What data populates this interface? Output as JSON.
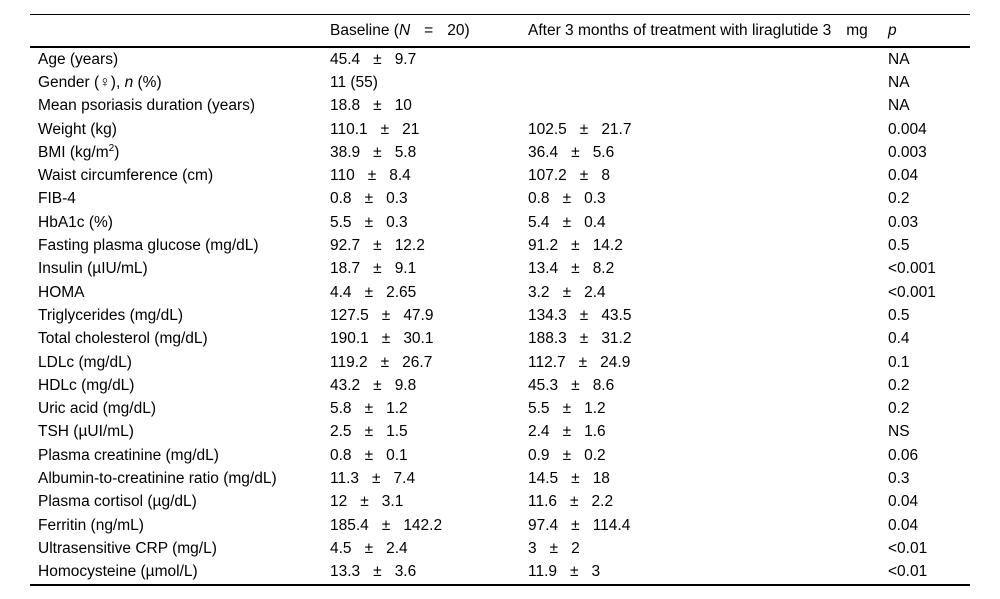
{
  "header": {
    "parameter": "",
    "baseline": {
      "pre": "Baseline (",
      "n": "N",
      "eq": "=",
      "post": "20)"
    },
    "after": {
      "main": "After 3 months of treatment with liraglutide 3",
      "unit": "mg"
    },
    "p": "p"
  },
  "rows": [
    {
      "label_pre": "Age (years)",
      "b_mean": "45.4",
      "b_pm": "±",
      "b_sd": "9.7",
      "p": "NA"
    },
    {
      "label_pre": "Gender (♀), ",
      "label_it": "n",
      "label_post": " (%)",
      "b_mean": "11 (55)",
      "p": "NA"
    },
    {
      "label_pre": "Mean psoriasis duration (years)",
      "b_mean": "18.8",
      "b_pm": "±",
      "b_sd": "10",
      "p": "NA"
    },
    {
      "label_pre": "Weight (kg)",
      "b_mean": "110.1",
      "b_pm": "±",
      "b_sd": "21",
      "a_mean": "102.5",
      "a_pm": "±",
      "a_sd": "21.7",
      "p": "0.004"
    },
    {
      "label_pre": "BMI (kg/m",
      "label_sup": "2",
      "label_post": ")",
      "b_mean": "38.9",
      "b_pm": "±",
      "b_sd": "5.8",
      "a_mean": "36.4",
      "a_pm": "±",
      "a_sd": "5.6",
      "p": "0.003"
    },
    {
      "label_pre": "Waist circumference (cm)",
      "b_mean": "110",
      "b_pm": "±",
      "b_sd": "8.4",
      "a_mean": "107.2",
      "a_pm": "±",
      "a_sd": "8",
      "p": "0.04"
    },
    {
      "label_pre": "FIB-4",
      "b_mean": "0.8",
      "b_pm": "±",
      "b_sd": "0.3",
      "a_mean": "0.8",
      "a_pm": "±",
      "a_sd": "0.3",
      "p": "0.2"
    },
    {
      "label_pre": "HbA1c (%)",
      "b_mean": "5.5",
      "b_pm": "±",
      "b_sd": "0.3",
      "a_mean": "5.4",
      "a_pm": "±",
      "a_sd": "0.4",
      "p": "0.03"
    },
    {
      "label_pre": "Fasting plasma glucose (mg/dL)",
      "b_mean": "92.7",
      "b_pm": "±",
      "b_sd": "12.2",
      "a_mean": "91.2",
      "a_pm": "±",
      "a_sd": "14.2",
      "p": "0.5"
    },
    {
      "label_pre": "Insulin (µIU/mL)",
      "b_mean": "18.7",
      "b_pm": "±",
      "b_sd": "9.1",
      "a_mean": "13.4",
      "a_pm": "±",
      "a_sd": "8.2",
      "p": "<0.001"
    },
    {
      "label_pre": "HOMA",
      "b_mean": "4.4",
      "b_pm": "±",
      "b_sd": "2.65",
      "a_mean": "3.2",
      "a_pm": "±",
      "a_sd": "2.4",
      "p": "<0.001"
    },
    {
      "label_pre": "Triglycerides (mg/dL)",
      "b_mean": "127.5",
      "b_pm": "±",
      "b_sd": "47.9",
      "a_mean": "134.3",
      "a_pm": "±",
      "a_sd": "43.5",
      "p": "0.5"
    },
    {
      "label_pre": "Total cholesterol (mg/dL)",
      "b_mean": "190.1",
      "b_pm": "±",
      "b_sd": "30.1",
      "a_mean": "188.3",
      "a_pm": "±",
      "a_sd": "31.2",
      "p": "0.4"
    },
    {
      "label_pre": "LDLc (mg/dL)",
      "b_mean": "119.2",
      "b_pm": "±",
      "b_sd": "26.7",
      "a_mean": "112.7",
      "a_pm": "±",
      "a_sd": "24.9",
      "p": "0.1"
    },
    {
      "label_pre": "HDLc (mg/dL)",
      "b_mean": "43.2",
      "b_pm": "±",
      "b_sd": "9.8",
      "a_mean": "45.3",
      "a_pm": "±",
      "a_sd": "8.6",
      "p": "0.2"
    },
    {
      "label_pre": "Uric acid (mg/dL)",
      "b_mean": "5.8",
      "b_pm": "±",
      "b_sd": "1.2",
      "a_mean": "5.5",
      "a_pm": "±",
      "a_sd": "1.2",
      "p": "0.2"
    },
    {
      "label_pre": "TSH (µUI/mL)",
      "b_mean": "2.5",
      "b_pm": "±",
      "b_sd": "1.5",
      "a_mean": "2.4",
      "a_pm": "±",
      "a_sd": "1.6",
      "p": "NS"
    },
    {
      "label_pre": "Plasma creatinine (mg/dL)",
      "b_mean": "0.8",
      "b_pm": "±",
      "b_sd": "0.1",
      "a_mean": "0.9",
      "a_pm": "±",
      "a_sd": "0.2",
      "p": "0.06"
    },
    {
      "label_pre": "Albumin-to-creatinine ratio (mg/dL)",
      "b_mean": "11.3",
      "b_pm": "±",
      "b_sd": "7.4",
      "a_mean": "14.5",
      "a_pm": "±",
      "a_sd": "18",
      "p": "0.3"
    },
    {
      "label_pre": "Plasma cortisol (µg/dL)",
      "b_mean": "12",
      "b_pm": "±",
      "b_sd": "3.1",
      "a_mean": "11.6",
      "a_pm": "±",
      "a_sd": "2.2",
      "p": "0.04"
    },
    {
      "label_pre": "Ferritin (ng/mL)",
      "b_mean": "185.4",
      "b_pm": "±",
      "b_sd": "142.2",
      "a_mean": "97.4",
      "a_pm": "±",
      "a_sd": "114.4",
      "p": "0.04"
    },
    {
      "label_pre": "Ultrasensitive CRP (mg/L)",
      "b_mean": "4.5",
      "b_pm": "±",
      "b_sd": "2.4",
      "a_mean": "3",
      "a_pm": "±",
      "a_sd": "2",
      "p": "<0.01"
    },
    {
      "label_pre": "Homocysteine (µmol/L)",
      "b_mean": "13.3",
      "b_pm": "±",
      "b_sd": "3.6",
      "a_mean": "11.9",
      "a_pm": "±",
      "a_sd": "3",
      "p": "<0.01"
    }
  ]
}
